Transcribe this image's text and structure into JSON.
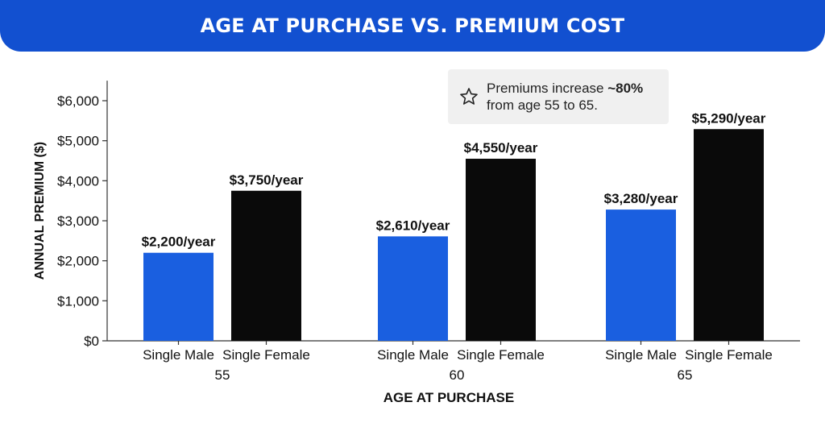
{
  "header": {
    "title": "AGE AT PURCHASE VS. PREMIUM COST"
  },
  "callout": {
    "icon": "star-icon",
    "text_prefix": "Premiums increase ",
    "text_bold": "~80%",
    "text_suffix": "from age 55 to 65."
  },
  "colors": {
    "header": "#1250d0",
    "male": "#1a5fe0",
    "female": "#0a0a0a"
  },
  "chart_data": {
    "type": "bar",
    "title": "AGE AT PURCHASE VS. PREMIUM COST",
    "xlabel": "AGE AT PURCHASE",
    "ylabel": "ANNUAL PREMIUM ($)",
    "ylim": [
      0,
      6500
    ],
    "yticks": [
      0,
      1000,
      2000,
      3000,
      4000,
      5000,
      6000
    ],
    "ytick_labels": [
      "$0",
      "$1,000",
      "$2,000",
      "$3,000",
      "$4,000",
      "$5,000",
      "$6,000"
    ],
    "grid": false,
    "legend": "none",
    "groups": [
      "55",
      "60",
      "65"
    ],
    "subcategories": [
      "Single Male",
      "Single Female"
    ],
    "series": [
      {
        "name": "Single Male",
        "color": "#1a5fe0",
        "values": [
          2200,
          2610,
          3280
        ],
        "labels": [
          "$2,200/year",
          "$2,610/year",
          "$3,280/year"
        ]
      },
      {
        "name": "Single Female",
        "color": "#0a0a0a",
        "values": [
          3750,
          4550,
          5290
        ],
        "labels": [
          "$3,750/year",
          "$4,550/year",
          "$5,290/year"
        ]
      }
    ]
  }
}
